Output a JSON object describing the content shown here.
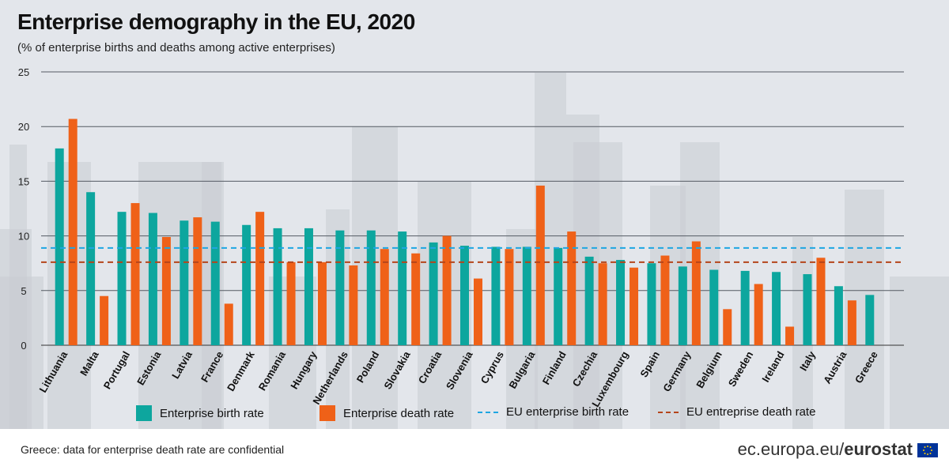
{
  "header": {
    "title": "Enterprise demography in the EU, 2020",
    "subtitle": "(% of enterprise births and deaths among active enterprises)"
  },
  "colors": {
    "birth": "#0da69e",
    "death": "#ef6118",
    "eu_birth_line": "#1ea6e2",
    "eu_death_line": "#b5451b",
    "grid": "#555a63",
    "background": "#e3e6eb",
    "skyline": "#c9ccd2"
  },
  "chart_data": {
    "type": "bar",
    "title": "Enterprise demography in the EU, 2020",
    "xlabel": "",
    "ylabel": "",
    "ylim": [
      0,
      25
    ],
    "yticks": [
      0,
      5,
      10,
      15,
      20,
      25
    ],
    "grid": true,
    "categories": [
      "Lithuania",
      "Malta",
      "Portugal",
      "Estonia",
      "Latvia",
      "France",
      "Denmark",
      "Romania",
      "Hungary",
      "Netherlands",
      "Poland",
      "Slovakia",
      "Croatia",
      "Slovenia",
      "Cyprus",
      "Bulgaria",
      "Finland",
      "Czechia",
      "Luxembourg",
      "Spain",
      "Germany",
      "Belgium",
      "Sweden",
      "Ireland",
      "Italy",
      "Austria",
      "Greece"
    ],
    "series": [
      {
        "name": "Enterprise birth rate",
        "values": [
          18.0,
          14.0,
          12.2,
          12.1,
          11.4,
          11.3,
          11.0,
          10.7,
          10.7,
          10.5,
          10.5,
          10.4,
          9.4,
          9.1,
          9.0,
          9.0,
          8.9,
          8.1,
          7.8,
          7.5,
          7.2,
          6.9,
          6.8,
          6.7,
          6.5,
          5.4,
          4.6
        ]
      },
      {
        "name": "Enterprise death rate",
        "values": [
          20.7,
          4.5,
          13.0,
          9.9,
          11.7,
          3.8,
          12.2,
          7.6,
          7.6,
          7.3,
          8.8,
          8.4,
          10.0,
          6.1,
          8.8,
          14.6,
          10.4,
          7.5,
          7.1,
          8.2,
          9.5,
          3.3,
          5.6,
          1.7,
          8.0,
          4.1,
          null
        ]
      }
    ],
    "reference_lines": [
      {
        "name": "EU enterprise birth rate",
        "value": 8.9
      },
      {
        "name": "EU enterprise death rate",
        "value": 7.6
      }
    ],
    "legend": {
      "placement": "bottom",
      "items": [
        "Enterprise birth rate",
        "Enterprise death rate",
        "EU enterprise birth rate",
        "EU entreprise death rate"
      ]
    }
  },
  "footer": {
    "note": "Greece: data for enterprise death rate are confidential",
    "brand_prefix": "ec.europa.eu/",
    "brand_name": "eurostat"
  }
}
